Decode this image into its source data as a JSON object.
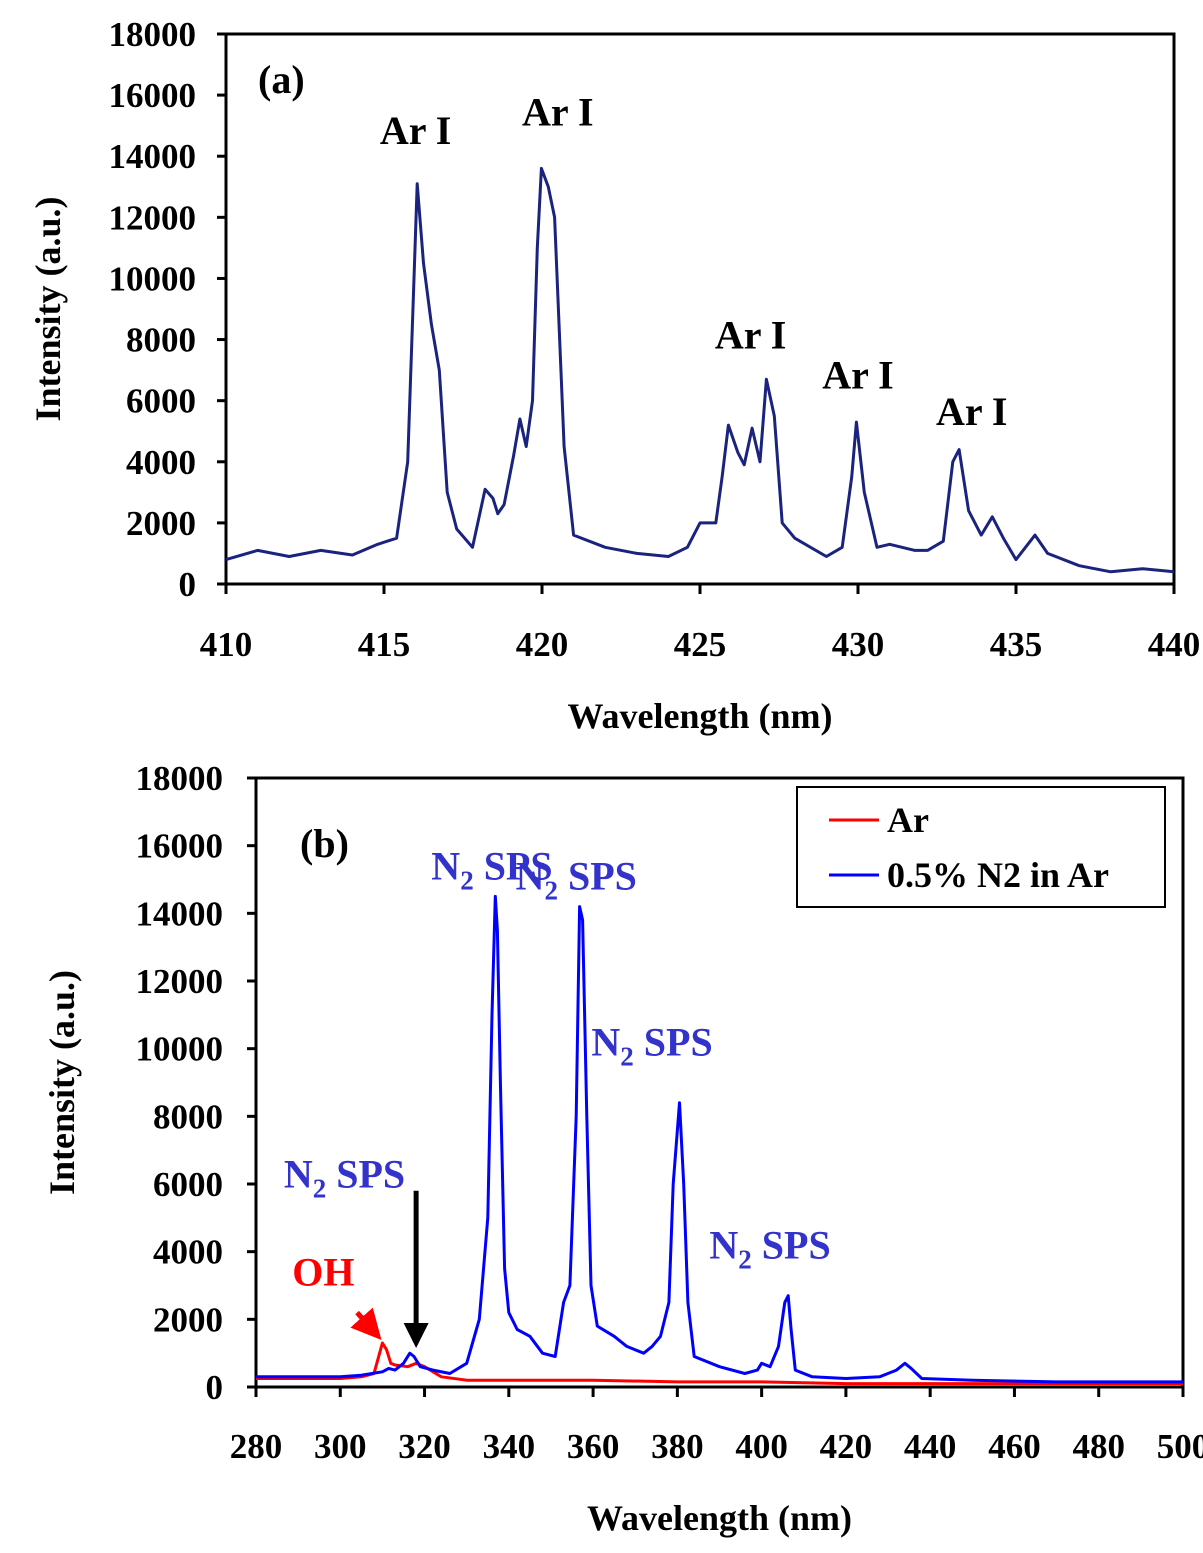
{
  "chart_data": [
    {
      "type": "line",
      "panel_label": "(a)",
      "xlabel": "Wavelength (nm)",
      "ylabel": "Intensity (a.u.)",
      "xlim": [
        410,
        440
      ],
      "ylim": [
        0,
        18000
      ],
      "xticks": [
        410,
        415,
        420,
        425,
        430,
        435,
        440
      ],
      "yticks": [
        0,
        2000,
        4000,
        6000,
        8000,
        10000,
        12000,
        14000,
        16000,
        18000
      ],
      "grid": false,
      "series": [
        {
          "color": "#1a237e",
          "points": [
            [
              410,
              800
            ],
            [
              411,
              1100
            ],
            [
              412,
              900
            ],
            [
              413,
              1100
            ],
            [
              414,
              950
            ],
            [
              414.8,
              1300
            ],
            [
              415.4,
              1500
            ],
            [
              415.75,
              4000
            ],
            [
              415.95,
              10000
            ],
            [
              416.05,
              13100
            ],
            [
              416.25,
              10500
            ],
            [
              416.5,
              8500
            ],
            [
              416.75,
              7000
            ],
            [
              417,
              3000
            ],
            [
              417.3,
              1800
            ],
            [
              417.8,
              1200
            ],
            [
              418.2,
              3100
            ],
            [
              418.45,
              2800
            ],
            [
              418.6,
              2300
            ],
            [
              418.8,
              2600
            ],
            [
              419.1,
              4200
            ],
            [
              419.3,
              5400
            ],
            [
              419.5,
              4500
            ],
            [
              419.7,
              6000
            ],
            [
              419.85,
              11000
            ],
            [
              419.98,
              13600
            ],
            [
              420.2,
              13000
            ],
            [
              420.4,
              12000
            ],
            [
              420.7,
              4500
            ],
            [
              421,
              1600
            ],
            [
              422,
              1200
            ],
            [
              423,
              1000
            ],
            [
              424,
              900
            ],
            [
              424.6,
              1200
            ],
            [
              425,
              2000
            ],
            [
              425.5,
              2000
            ],
            [
              425.7,
              3500
            ],
            [
              425.9,
              5200
            ],
            [
              426.2,
              4300
            ],
            [
              426.4,
              3900
            ],
            [
              426.65,
              5100
            ],
            [
              426.9,
              4000
            ],
            [
              427.1,
              6700
            ],
            [
              427.35,
              5500
            ],
            [
              427.6,
              2000
            ],
            [
              428,
              1500
            ],
            [
              429,
              900
            ],
            [
              429.5,
              1200
            ],
            [
              429.8,
              3500
            ],
            [
              429.95,
              5300
            ],
            [
              430.2,
              3000
            ],
            [
              430.6,
              1200
            ],
            [
              431,
              1300
            ],
            [
              431.8,
              1100
            ],
            [
              432.2,
              1100
            ],
            [
              432.7,
              1400
            ],
            [
              433,
              4000
            ],
            [
              433.2,
              4400
            ],
            [
              433.5,
              2400
            ],
            [
              433.9,
              1600
            ],
            [
              434.25,
              2200
            ],
            [
              434.6,
              1500
            ],
            [
              435,
              800
            ],
            [
              435.6,
              1600
            ],
            [
              436,
              1000
            ],
            [
              437,
              600
            ],
            [
              438,
              400
            ],
            [
              439,
              500
            ],
            [
              440,
              400
            ]
          ]
        }
      ],
      "annotations": [
        {
          "text": "Ar I",
          "x": 416.0,
          "y": 14400,
          "color": "#000000"
        },
        {
          "text": "Ar I",
          "x": 420.5,
          "y": 15000,
          "color": "#000000"
        },
        {
          "text": "Ar I",
          "x": 426.6,
          "y": 7700,
          "color": "#000000"
        },
        {
          "text": "Ar I",
          "x": 430.0,
          "y": 6400,
          "color": "#000000"
        },
        {
          "text": "Ar I",
          "x": 433.6,
          "y": 5200,
          "color": "#000000"
        }
      ]
    },
    {
      "type": "line",
      "panel_label": "(b)",
      "xlabel": "Wavelength (nm)",
      "ylabel": "Intensity (a.u.)",
      "xlim": [
        280,
        500
      ],
      "ylim": [
        0,
        18000
      ],
      "xticks": [
        280,
        300,
        320,
        340,
        360,
        380,
        400,
        420,
        440,
        460,
        480,
        500
      ],
      "xtick_labels": [
        "280",
        "300",
        "320",
        "340",
        "360",
        "380",
        "400",
        "420",
        "440",
        "460",
        "480",
        "500"
      ],
      "yticks": [
        0,
        2000,
        4000,
        6000,
        8000,
        10000,
        12000,
        14000,
        16000,
        18000
      ],
      "grid": false,
      "legend_position": "top-right",
      "series": [
        {
          "name": "Ar",
          "color": "#ff0000",
          "points": [
            [
              280,
              250
            ],
            [
              300,
              250
            ],
            [
              305,
              300
            ],
            [
              308,
              400
            ],
            [
              310,
              1300
            ],
            [
              311,
              1100
            ],
            [
              312,
              700
            ],
            [
              313,
              650
            ],
            [
              316,
              600
            ],
            [
              318,
              700
            ],
            [
              320,
              600
            ],
            [
              324,
              300
            ],
            [
              330,
              200
            ],
            [
              340,
              200
            ],
            [
              360,
              200
            ],
            [
              380,
              150
            ],
            [
              400,
              150
            ],
            [
              420,
              100
            ],
            [
              440,
              100
            ],
            [
              460,
              100
            ],
            [
              480,
              100
            ],
            [
              500,
              100
            ]
          ]
        },
        {
          "name": "0.5% N2 in Ar",
          "color": "#0000ff",
          "points": [
            [
              280,
              300
            ],
            [
              290,
              300
            ],
            [
              300,
              300
            ],
            [
              305,
              350
            ],
            [
              310,
              450
            ],
            [
              311.5,
              550
            ],
            [
              313,
              500
            ],
            [
              315,
              700
            ],
            [
              316.5,
              1000
            ],
            [
              317.5,
              900
            ],
            [
              319,
              600
            ],
            [
              322,
              500
            ],
            [
              326,
              400
            ],
            [
              330,
              700
            ],
            [
              333,
              2000
            ],
            [
              335,
              5000
            ],
            [
              336,
              11000
            ],
            [
              336.8,
              14500
            ],
            [
              337.3,
              13500
            ],
            [
              338,
              9000
            ],
            [
              339,
              3500
            ],
            [
              340,
              2200
            ],
            [
              342,
              1700
            ],
            [
              345,
              1500
            ],
            [
              348,
              1000
            ],
            [
              351,
              900
            ],
            [
              353,
              2500
            ],
            [
              354.5,
              3000
            ],
            [
              356,
              8000
            ],
            [
              356.8,
              14200
            ],
            [
              357.5,
              13800
            ],
            [
              358.5,
              8000
            ],
            [
              359.5,
              3000
            ],
            [
              361,
              1800
            ],
            [
              365,
              1500
            ],
            [
              368,
              1200
            ],
            [
              372,
              1000
            ],
            [
              374,
              1200
            ],
            [
              376,
              1500
            ],
            [
              378,
              2500
            ],
            [
              379,
              6000
            ],
            [
              380.5,
              8400
            ],
            [
              381.5,
              6000
            ],
            [
              382.5,
              2500
            ],
            [
              384,
              900
            ],
            [
              390,
              600
            ],
            [
              396,
              400
            ],
            [
              399,
              500
            ],
            [
              400,
              700
            ],
            [
              402,
              600
            ],
            [
              404,
              1200
            ],
            [
              405.5,
              2500
            ],
            [
              406.3,
              2700
            ],
            [
              407,
              1700
            ],
            [
              408,
              500
            ],
            [
              412,
              300
            ],
            [
              420,
              250
            ],
            [
              428,
              300
            ],
            [
              432,
              500
            ],
            [
              434,
              700
            ],
            [
              435.5,
              550
            ],
            [
              438,
              250
            ],
            [
              450,
              200
            ],
            [
              470,
              150
            ],
            [
              490,
              150
            ],
            [
              500,
              150
            ]
          ]
        }
      ],
      "annotations": [
        {
          "text": "N2 SPS",
          "main": "N",
          "sub": "2",
          "rest": " SPS",
          "x": 336,
          "y": 15000,
          "color": "#3333cc"
        },
        {
          "text": "N2 SPS",
          "main": "N",
          "sub": "2",
          "rest": " SPS",
          "x": 356,
          "y": 14700,
          "color": "#3333cc"
        },
        {
          "text": "N2 SPS",
          "main": "N",
          "sub": "2",
          "rest": " SPS",
          "x": 374,
          "y": 9800,
          "color": "#3333cc"
        },
        {
          "text": "N2 SPS",
          "main": "N",
          "sub": "2",
          "rest": " SPS",
          "x": 402,
          "y": 3800,
          "color": "#3333cc"
        },
        {
          "text": "N2 SPS",
          "main": "N",
          "sub": "2",
          "rest": " SPS",
          "x": 301,
          "y": 5900,
          "color": "#3333cc"
        },
        {
          "text": "OH",
          "x": 296,
          "y": 3000,
          "color": "#ff0000"
        }
      ],
      "arrows": [
        {
          "color": "#ff0000",
          "from": [
            304,
            2200
          ],
          "to": [
            309,
            1500
          ]
        },
        {
          "color": "#000000",
          "from": [
            318,
            5800
          ],
          "to": [
            318,
            1300
          ]
        }
      ]
    }
  ]
}
